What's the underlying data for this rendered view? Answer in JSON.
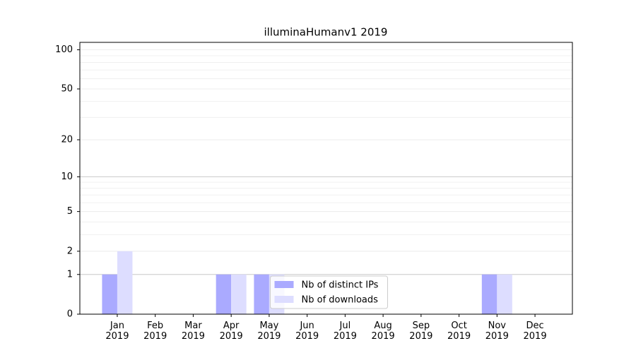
{
  "chart_data": {
    "type": "bar",
    "title": "illuminaHumanv1 2019",
    "categories": [
      "Jan\n2019",
      "Feb\n2019",
      "Mar\n2019",
      "Apr\n2019",
      "May\n2019",
      "Jun\n2019",
      "Jul\n2019",
      "Aug\n2019",
      "Sep\n2019",
      "Oct\n2019",
      "Nov\n2019",
      "Dec\n2019"
    ],
    "series": [
      {
        "name": "Nb of distinct IPs",
        "color": "#aaaaff",
        "values": [
          1,
          0,
          0,
          1,
          1,
          0,
          0,
          0,
          0,
          0,
          1,
          0
        ]
      },
      {
        "name": "Nb of downloads",
        "color": "#ddddff",
        "values": [
          2,
          0,
          0,
          1,
          1,
          0,
          0,
          0,
          0,
          0,
          1,
          0
        ]
      }
    ],
    "scale": "log1p",
    "ylim": [
      0,
      114
    ],
    "yticks": [
      0,
      1,
      2,
      5,
      10,
      20,
      50,
      100
    ],
    "grid": true,
    "legend": "lower center"
  }
}
